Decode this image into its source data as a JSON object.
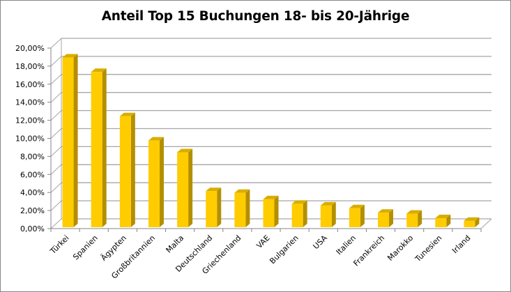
{
  "chart_data": {
    "type": "bar",
    "style": "3d-column",
    "title": "Anteil Top 15 Buchungen 18- bis 20-Jährige",
    "xlabel": "",
    "ylabel": "",
    "ylim": [
      0,
      0.2
    ],
    "y_ticks": [
      "0,00%",
      "2,00%",
      "4,00%",
      "6,00%",
      "8,00%",
      "10,00%",
      "12,00%",
      "14,00%",
      "16,00%",
      "18,00%",
      "20,00%"
    ],
    "grid": true,
    "legend": null,
    "categories": [
      "Türkei",
      "Spanien",
      "Ägypten",
      "Großbritannien",
      "Malta",
      "Deutschland",
      "Griechenland",
      "VAE",
      "Bulgarien",
      "USA",
      "Italien",
      "Frankreich",
      "Marokko",
      "Tunesien",
      "Irland"
    ],
    "values": [
      0.188,
      0.172,
      0.123,
      0.096,
      0.083,
      0.04,
      0.038,
      0.031,
      0.026,
      0.024,
      0.021,
      0.016,
      0.015,
      0.01,
      0.007
    ],
    "colors": {
      "bar_front": "#FFCC00",
      "bar_side": "#B38F00",
      "bar_top": "#D9AD00",
      "grid": "#A6A6A6",
      "axis": "#868686"
    }
  }
}
